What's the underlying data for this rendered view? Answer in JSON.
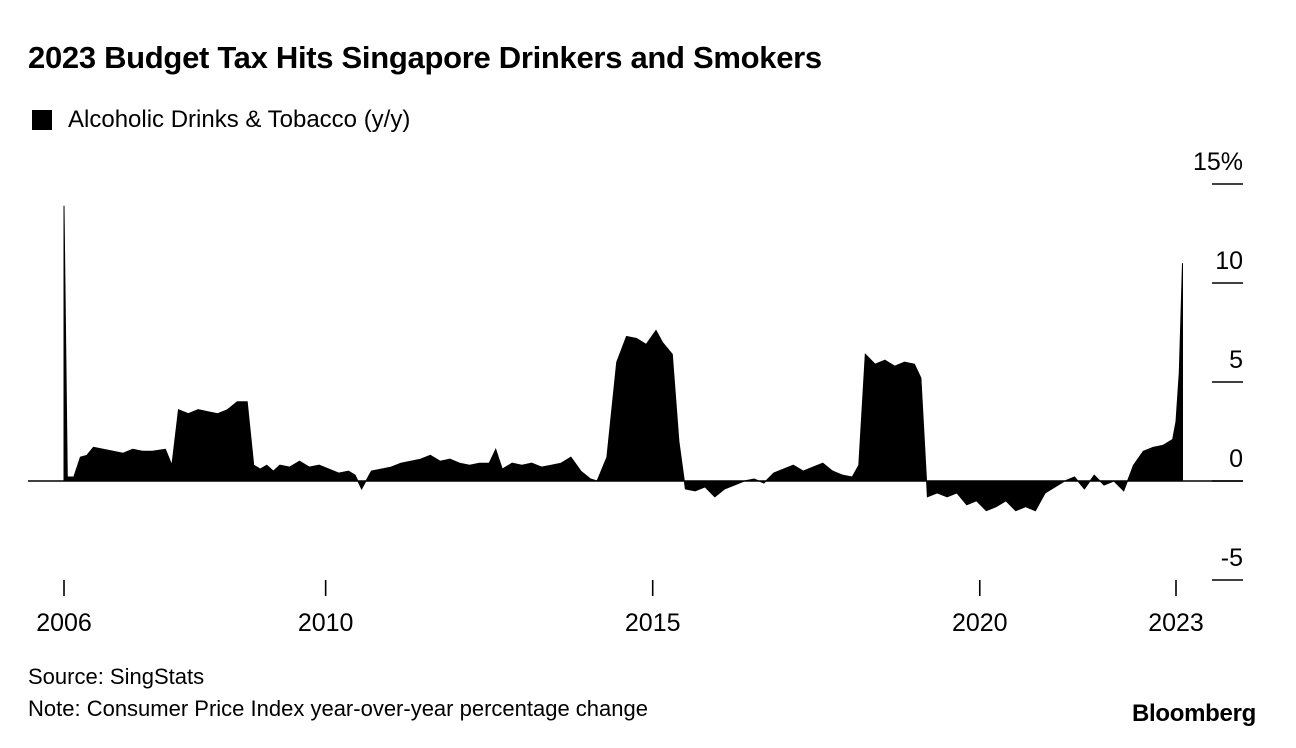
{
  "title": "2023 Budget Tax Hits Singapore Drinkers and Smokers",
  "legend": {
    "label": "Alcoholic Drinks & Tobacco (y/y)",
    "color": "#000000"
  },
  "source": "Source: SingStats",
  "note": "Note: Consumer Price Index year-over-year percentage change",
  "brand": "Bloomberg",
  "chart_data": {
    "type": "area",
    "ylim": [
      -5,
      15
    ],
    "xlim": [
      2006,
      2023.5
    ],
    "y_ticks": [
      {
        "value": 15,
        "label": "15%"
      },
      {
        "value": 10,
        "label": "10"
      },
      {
        "value": 5,
        "label": "5"
      },
      {
        "value": 0,
        "label": "0"
      },
      {
        "value": -5,
        "label": "-5"
      }
    ],
    "x_ticks": [
      {
        "value": 2006,
        "label": "2006"
      },
      {
        "value": 2010,
        "label": "2010"
      },
      {
        "value": 2015,
        "label": "2015"
      },
      {
        "value": 2020,
        "label": "2020"
      },
      {
        "value": 2023,
        "label": "2023"
      }
    ],
    "series": [
      {
        "name": "Alcoholic Drinks & Tobacco (y/y)",
        "color": "#000000",
        "points": [
          [
            2006.0,
            0.0
          ],
          [
            2006.0,
            13.9
          ],
          [
            2006.05,
            0.2
          ],
          [
            2006.15,
            0.2
          ],
          [
            2006.25,
            1.2
          ],
          [
            2006.35,
            1.3
          ],
          [
            2006.45,
            1.7
          ],
          [
            2006.6,
            1.6
          ],
          [
            2006.75,
            1.5
          ],
          [
            2006.9,
            1.4
          ],
          [
            2007.05,
            1.6
          ],
          [
            2007.2,
            1.5
          ],
          [
            2007.35,
            1.5
          ],
          [
            2007.55,
            1.6
          ],
          [
            2007.65,
            0.8
          ],
          [
            2007.75,
            3.6
          ],
          [
            2007.9,
            3.4
          ],
          [
            2008.05,
            3.6
          ],
          [
            2008.2,
            3.5
          ],
          [
            2008.35,
            3.4
          ],
          [
            2008.5,
            3.6
          ],
          [
            2008.65,
            4.0
          ],
          [
            2008.8,
            4.0
          ],
          [
            2008.9,
            0.8
          ],
          [
            2009.0,
            0.6
          ],
          [
            2009.1,
            0.8
          ],
          [
            2009.2,
            0.5
          ],
          [
            2009.3,
            0.8
          ],
          [
            2009.45,
            0.7
          ],
          [
            2009.6,
            1.0
          ],
          [
            2009.75,
            0.7
          ],
          [
            2009.9,
            0.8
          ],
          [
            2010.05,
            0.6
          ],
          [
            2010.2,
            0.4
          ],
          [
            2010.35,
            0.5
          ],
          [
            2010.45,
            0.3
          ],
          [
            2010.55,
            -0.4
          ],
          [
            2010.7,
            0.5
          ],
          [
            2010.85,
            0.6
          ],
          [
            2011.0,
            0.7
          ],
          [
            2011.15,
            0.9
          ],
          [
            2011.3,
            1.0
          ],
          [
            2011.45,
            1.1
          ],
          [
            2011.6,
            1.3
          ],
          [
            2011.75,
            1.0
          ],
          [
            2011.9,
            1.1
          ],
          [
            2012.05,
            0.9
          ],
          [
            2012.2,
            0.8
          ],
          [
            2012.35,
            0.9
          ],
          [
            2012.5,
            0.9
          ],
          [
            2012.6,
            1.6
          ],
          [
            2012.7,
            0.6
          ],
          [
            2012.85,
            0.9
          ],
          [
            2013.0,
            0.8
          ],
          [
            2013.15,
            0.9
          ],
          [
            2013.3,
            0.7
          ],
          [
            2013.45,
            0.8
          ],
          [
            2013.6,
            0.9
          ],
          [
            2013.75,
            1.2
          ],
          [
            2013.9,
            0.5
          ],
          [
            2014.05,
            0.1
          ],
          [
            2014.15,
            0.0
          ],
          [
            2014.3,
            1.2
          ],
          [
            2014.45,
            6.0
          ],
          [
            2014.6,
            7.3
          ],
          [
            2014.75,
            7.2
          ],
          [
            2014.9,
            6.9
          ],
          [
            2015.05,
            7.6
          ],
          [
            2015.15,
            7.0
          ],
          [
            2015.3,
            6.4
          ],
          [
            2015.4,
            2.0
          ],
          [
            2015.5,
            -0.4
          ],
          [
            2015.65,
            -0.5
          ],
          [
            2015.8,
            -0.3
          ],
          [
            2015.95,
            -0.8
          ],
          [
            2016.1,
            -0.4
          ],
          [
            2016.25,
            -0.2
          ],
          [
            2016.4,
            0.0
          ],
          [
            2016.55,
            0.1
          ],
          [
            2016.7,
            -0.1
          ],
          [
            2016.85,
            0.4
          ],
          [
            2017.0,
            0.6
          ],
          [
            2017.15,
            0.8
          ],
          [
            2017.3,
            0.5
          ],
          [
            2017.45,
            0.7
          ],
          [
            2017.6,
            0.9
          ],
          [
            2017.75,
            0.5
          ],
          [
            2017.9,
            0.3
          ],
          [
            2018.05,
            0.2
          ],
          [
            2018.15,
            0.8
          ],
          [
            2018.25,
            6.4
          ],
          [
            2018.4,
            5.9
          ],
          [
            2018.55,
            6.1
          ],
          [
            2018.7,
            5.8
          ],
          [
            2018.85,
            6.0
          ],
          [
            2019.0,
            5.9
          ],
          [
            2019.1,
            5.2
          ],
          [
            2019.2,
            -0.8
          ],
          [
            2019.35,
            -0.6
          ],
          [
            2019.5,
            -0.8
          ],
          [
            2019.65,
            -0.6
          ],
          [
            2019.8,
            -1.2
          ],
          [
            2019.95,
            -1.0
          ],
          [
            2020.1,
            -1.5
          ],
          [
            2020.25,
            -1.3
          ],
          [
            2020.4,
            -1.0
          ],
          [
            2020.55,
            -1.5
          ],
          [
            2020.7,
            -1.3
          ],
          [
            2020.85,
            -1.5
          ],
          [
            2021.0,
            -0.6
          ],
          [
            2021.15,
            -0.3
          ],
          [
            2021.3,
            0.0
          ],
          [
            2021.45,
            0.2
          ],
          [
            2021.6,
            -0.4
          ],
          [
            2021.75,
            0.3
          ],
          [
            2021.9,
            -0.2
          ],
          [
            2022.05,
            0.0
          ],
          [
            2022.2,
            -0.5
          ],
          [
            2022.35,
            0.8
          ],
          [
            2022.5,
            1.5
          ],
          [
            2022.65,
            1.7
          ],
          [
            2022.8,
            1.8
          ],
          [
            2022.95,
            2.1
          ],
          [
            2023.0,
            3.0
          ],
          [
            2023.05,
            5.5
          ],
          [
            2023.1,
            11.0
          ],
          [
            2023.1,
            0.0
          ]
        ]
      }
    ]
  }
}
